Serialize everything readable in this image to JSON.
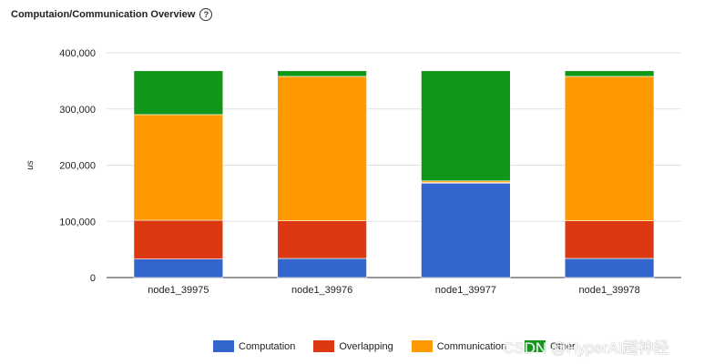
{
  "header": {
    "title": "Computaion/Communication Overview",
    "help_icon": "?"
  },
  "chart_data": {
    "type": "bar",
    "stacked": true,
    "title": "Computaion/Communication Overview",
    "xlabel": "",
    "ylabel": "us",
    "ylim": [
      0,
      400000
    ],
    "yticks": [
      "0",
      "100,000",
      "200,000",
      "300,000",
      "400,000"
    ],
    "grid": true,
    "legend_position": "bottom",
    "categories": [
      "node1_39975",
      "node1_39976",
      "node1_39977",
      "node1_39978"
    ],
    "series": [
      {
        "name": "Computation",
        "color": "#3366cc",
        "values": [
          33000,
          34000,
          168000,
          34000
        ]
      },
      {
        "name": "Overlapping",
        "color": "#dc3912",
        "values": [
          69000,
          67000,
          1000,
          67000
        ]
      },
      {
        "name": "Communication",
        "color": "#ff9900",
        "values": [
          188000,
          257000,
          3000,
          257000
        ]
      },
      {
        "name": "Other",
        "color": "#109618",
        "values": [
          78000,
          10000,
          196000,
          10000
        ]
      }
    ]
  },
  "legend": {
    "items": [
      {
        "label": "Computation",
        "color": "#3366cc"
      },
      {
        "label": "Overlapping",
        "color": "#dc3912"
      },
      {
        "label": "Communication",
        "color": "#ff9900"
      },
      {
        "label": "Other",
        "color": "#109618"
      }
    ]
  },
  "watermark": "CSDN @HyperAI超神经"
}
